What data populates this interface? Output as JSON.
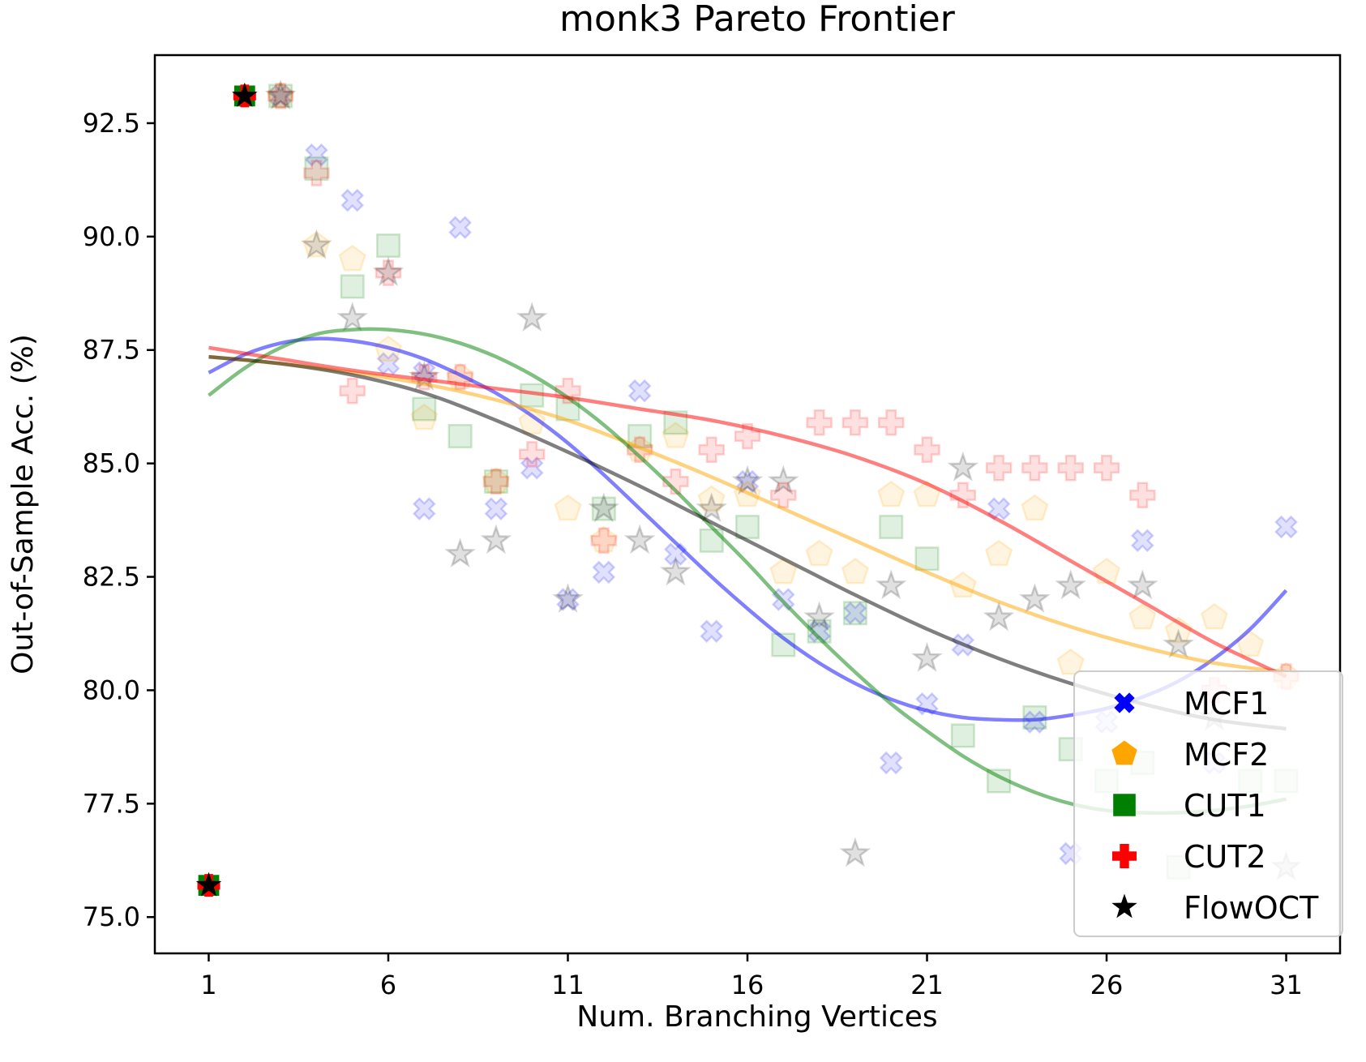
{
  "chart_data": {
    "type": "scatter",
    "title": "monk3 Pareto Frontier",
    "xlabel": "Num. Branching Vertices",
    "ylabel": "Out-of-Sample Acc. (%)",
    "xlim": [
      -0.5,
      32.5
    ],
    "ylim": [
      74.2,
      94.0
    ],
    "xticks": [
      1,
      6,
      11,
      16,
      21,
      26,
      31
    ],
    "yticks": [
      75.0,
      77.5,
      80.0,
      82.5,
      85.0,
      87.5,
      90.0,
      92.5
    ],
    "ytick_labels": [
      "75.0",
      "77.5",
      "80.0",
      "82.5",
      "85.0",
      "87.5",
      "90.0",
      "92.5"
    ],
    "grid": false,
    "legend_position": "lower-right",
    "series": [
      {
        "name": "MCF1",
        "color": "#0000ff",
        "marker": "x-thick",
        "points": [
          [
            1,
            75.7
          ],
          [
            2,
            93.1
          ],
          [
            3,
            93.1
          ],
          [
            4,
            91.8
          ],
          [
            5,
            90.8
          ],
          [
            6,
            87.2
          ],
          [
            7,
            87.0
          ],
          [
            7,
            84.0
          ],
          [
            8,
            90.2
          ],
          [
            9,
            84.0
          ],
          [
            10,
            84.9
          ],
          [
            11,
            82.0
          ],
          [
            12,
            82.6
          ],
          [
            13,
            86.6
          ],
          [
            14,
            83.0
          ],
          [
            15,
            81.3
          ],
          [
            16,
            84.6
          ],
          [
            17,
            82.0
          ],
          [
            18,
            81.3
          ],
          [
            19,
            81.7
          ],
          [
            20,
            78.4
          ],
          [
            21,
            79.7
          ],
          [
            22,
            81.0
          ],
          [
            23,
            84.0
          ],
          [
            24,
            79.3
          ],
          [
            25,
            76.4
          ],
          [
            26,
            79.3
          ],
          [
            27,
            83.3
          ],
          [
            29,
            78.4
          ],
          [
            31,
            83.6
          ]
        ],
        "trend": [
          [
            1,
            87.0
          ],
          [
            2,
            87.4
          ],
          [
            3,
            87.65
          ],
          [
            4,
            87.75
          ],
          [
            5,
            87.7
          ],
          [
            6,
            87.55
          ],
          [
            7,
            87.3
          ],
          [
            8,
            86.95
          ],
          [
            9,
            86.55
          ],
          [
            10,
            86.05
          ],
          [
            11,
            85.45
          ],
          [
            12,
            84.75
          ],
          [
            13,
            84.0
          ],
          [
            14,
            83.25
          ],
          [
            15,
            82.5
          ],
          [
            16,
            81.8
          ],
          [
            17,
            81.15
          ],
          [
            18,
            80.6
          ],
          [
            19,
            80.15
          ],
          [
            20,
            79.8
          ],
          [
            21,
            79.55
          ],
          [
            22,
            79.4
          ],
          [
            23,
            79.35
          ],
          [
            24,
            79.35
          ],
          [
            25,
            79.45
          ],
          [
            26,
            79.6
          ],
          [
            27,
            79.85
          ],
          [
            28,
            80.2
          ],
          [
            29,
            80.7
          ],
          [
            30,
            81.35
          ],
          [
            31,
            82.2
          ]
        ]
      },
      {
        "name": "MCF2",
        "color": "#ffa500",
        "marker": "pentagon",
        "points": [
          [
            2,
            93.1
          ],
          [
            3,
            93.1
          ],
          [
            4,
            89.8
          ],
          [
            5,
            89.5
          ],
          [
            6,
            87.5
          ],
          [
            7,
            86.0
          ],
          [
            8,
            86.9
          ],
          [
            9,
            84.6
          ],
          [
            10,
            85.9
          ],
          [
            11,
            84.0
          ],
          [
            12,
            83.3
          ],
          [
            13,
            85.3
          ],
          [
            14,
            85.6
          ],
          [
            15,
            84.2
          ],
          [
            16,
            84.3
          ],
          [
            17,
            82.6
          ],
          [
            18,
            83.0
          ],
          [
            19,
            82.6
          ],
          [
            20,
            84.3
          ],
          [
            21,
            84.3
          ],
          [
            22,
            82.3
          ],
          [
            23,
            83.0
          ],
          [
            24,
            84.0
          ],
          [
            25,
            80.6
          ],
          [
            26,
            82.6
          ],
          [
            27,
            81.6
          ],
          [
            28,
            81.3
          ],
          [
            29,
            81.6
          ],
          [
            30,
            81.0
          ],
          [
            31,
            80.3
          ]
        ],
        "trend": [
          [
            1,
            87.35
          ],
          [
            3,
            87.2
          ],
          [
            5,
            87.0
          ],
          [
            7,
            86.75
          ],
          [
            9,
            86.4
          ],
          [
            11,
            85.95
          ],
          [
            13,
            85.35
          ],
          [
            15,
            84.7
          ],
          [
            17,
            84.0
          ],
          [
            19,
            83.3
          ],
          [
            21,
            82.6
          ],
          [
            23,
            81.95
          ],
          [
            25,
            81.4
          ],
          [
            27,
            80.95
          ],
          [
            29,
            80.6
          ],
          [
            31,
            80.4
          ]
        ]
      },
      {
        "name": "CUT1",
        "color": "#008000",
        "marker": "square",
        "points": [
          [
            1,
            75.7
          ],
          [
            2,
            93.1
          ],
          [
            3,
            93.1
          ],
          [
            4,
            91.5
          ],
          [
            5,
            88.9
          ],
          [
            6,
            89.8
          ],
          [
            7,
            86.2
          ],
          [
            8,
            85.6
          ],
          [
            9,
            84.6
          ],
          [
            10,
            86.5
          ],
          [
            11,
            86.2
          ],
          [
            12,
            84.0
          ],
          [
            13,
            85.6
          ],
          [
            14,
            85.9
          ],
          [
            15,
            83.3
          ],
          [
            16,
            83.6
          ],
          [
            17,
            81.0
          ],
          [
            18,
            81.3
          ],
          [
            19,
            81.7
          ],
          [
            20,
            83.6
          ],
          [
            21,
            82.9
          ],
          [
            22,
            79.0
          ],
          [
            23,
            78.0
          ],
          [
            24,
            79.4
          ],
          [
            25,
            78.7
          ],
          [
            26,
            78.0
          ],
          [
            27,
            78.4
          ],
          [
            28,
            76.1
          ],
          [
            30,
            78.0
          ],
          [
            31,
            78.0
          ]
        ],
        "trend": [
          [
            1,
            86.5
          ],
          [
            2,
            87.1
          ],
          [
            3,
            87.55
          ],
          [
            4,
            87.85
          ],
          [
            5,
            87.95
          ],
          [
            6,
            87.95
          ],
          [
            7,
            87.85
          ],
          [
            8,
            87.65
          ],
          [
            9,
            87.35
          ],
          [
            10,
            86.95
          ],
          [
            11,
            86.45
          ],
          [
            12,
            85.85
          ],
          [
            13,
            85.15
          ],
          [
            14,
            84.4
          ],
          [
            15,
            83.6
          ],
          [
            16,
            82.8
          ],
          [
            17,
            81.95
          ],
          [
            18,
            81.15
          ],
          [
            19,
            80.4
          ],
          [
            20,
            79.7
          ],
          [
            21,
            79.1
          ],
          [
            22,
            78.55
          ],
          [
            23,
            78.1
          ],
          [
            24,
            77.75
          ],
          [
            25,
            77.5
          ],
          [
            26,
            77.35
          ],
          [
            27,
            77.3
          ],
          [
            28,
            77.3
          ],
          [
            29,
            77.35
          ],
          [
            30,
            77.45
          ],
          [
            31,
            77.6
          ]
        ]
      },
      {
        "name": "CUT2",
        "color": "#ff0000",
        "marker": "plus-thick",
        "points": [
          [
            1,
            75.7
          ],
          [
            2,
            93.1
          ],
          [
            3,
            93.1
          ],
          [
            4,
            91.4
          ],
          [
            5,
            86.6
          ],
          [
            6,
            89.2
          ],
          [
            7,
            86.9
          ],
          [
            8,
            86.9
          ],
          [
            9,
            84.6
          ],
          [
            10,
            85.2
          ],
          [
            11,
            86.6
          ],
          [
            12,
            83.3
          ],
          [
            13,
            85.3
          ],
          [
            14,
            84.6
          ],
          [
            15,
            85.3
          ],
          [
            16,
            85.6
          ],
          [
            17,
            84.3
          ],
          [
            18,
            85.9
          ],
          [
            19,
            85.9
          ],
          [
            20,
            85.9
          ],
          [
            21,
            85.3
          ],
          [
            22,
            84.3
          ],
          [
            23,
            84.9
          ],
          [
            24,
            84.9
          ],
          [
            25,
            84.9
          ],
          [
            26,
            84.9
          ],
          [
            27,
            84.3
          ],
          [
            29,
            80.0
          ],
          [
            31,
            80.3
          ]
        ],
        "trend": [
          [
            1,
            87.55
          ],
          [
            3,
            87.3
          ],
          [
            5,
            87.05
          ],
          [
            7,
            86.85
          ],
          [
            9,
            86.65
          ],
          [
            11,
            86.45
          ],
          [
            13,
            86.2
          ],
          [
            15,
            85.95
          ],
          [
            17,
            85.6
          ],
          [
            19,
            85.15
          ],
          [
            21,
            84.55
          ],
          [
            23,
            83.75
          ],
          [
            25,
            82.85
          ],
          [
            27,
            81.95
          ],
          [
            29,
            81.05
          ],
          [
            31,
            80.3
          ]
        ]
      },
      {
        "name": "FlowOCT",
        "color": "#000000",
        "marker": "star",
        "points": [
          [
            1,
            75.7
          ],
          [
            2,
            93.1
          ],
          [
            3,
            93.1
          ],
          [
            4,
            89.8
          ],
          [
            5,
            88.2
          ],
          [
            6,
            89.2
          ],
          [
            7,
            86.9
          ],
          [
            8,
            83.0
          ],
          [
            9,
            83.3
          ],
          [
            10,
            88.2
          ],
          [
            11,
            82.0
          ],
          [
            12,
            84.0
          ],
          [
            13,
            83.3
          ],
          [
            14,
            82.6
          ],
          [
            15,
            84.0
          ],
          [
            16,
            84.6
          ],
          [
            17,
            84.6
          ],
          [
            18,
            81.6
          ],
          [
            19,
            76.4
          ],
          [
            20,
            82.3
          ],
          [
            21,
            80.7
          ],
          [
            22,
            84.9
          ],
          [
            23,
            81.6
          ],
          [
            24,
            82.0
          ],
          [
            25,
            82.3
          ],
          [
            27,
            82.3
          ],
          [
            28,
            81.0
          ],
          [
            29,
            79.4
          ],
          [
            31,
            76.1
          ]
        ],
        "trend": [
          [
            1,
            87.35
          ],
          [
            3,
            87.2
          ],
          [
            5,
            86.95
          ],
          [
            7,
            86.55
          ],
          [
            9,
            85.95
          ],
          [
            11,
            85.25
          ],
          [
            13,
            84.5
          ],
          [
            15,
            83.7
          ],
          [
            17,
            82.9
          ],
          [
            19,
            82.1
          ],
          [
            21,
            81.35
          ],
          [
            23,
            80.7
          ],
          [
            25,
            80.15
          ],
          [
            27,
            79.7
          ],
          [
            29,
            79.35
          ],
          [
            31,
            79.15
          ]
        ]
      }
    ],
    "highlight_points": [
      [
        1,
        75.7
      ],
      [
        2,
        93.1
      ]
    ]
  }
}
